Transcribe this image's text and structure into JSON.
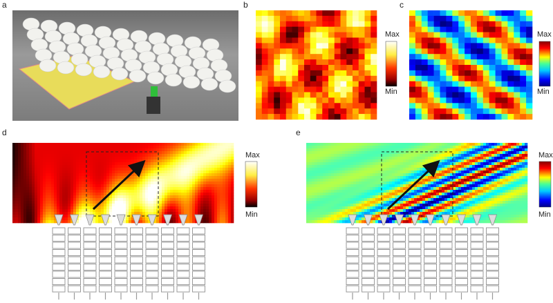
{
  "panels": [
    {
      "label": "a"
    },
    {
      "label": "b",
      "colorbar": {
        "max": "Max",
        "min": "Min"
      }
    },
    {
      "label": "c",
      "colorbar": {
        "max": "Max",
        "min": "Min"
      }
    },
    {
      "label": "d",
      "colorbar": {
        "max": "Max",
        "min": "Min"
      }
    },
    {
      "label": "e",
      "colorbar": {
        "max": "Max",
        "min": "Min"
      }
    }
  ]
}
